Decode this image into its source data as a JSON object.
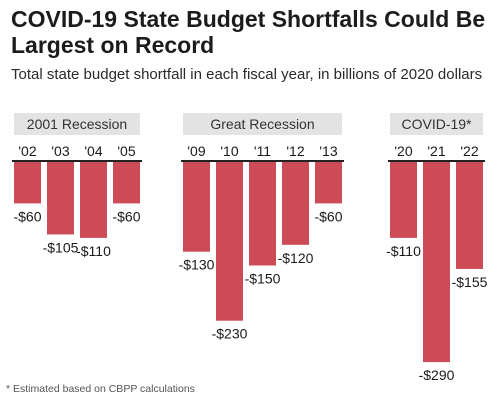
{
  "title": "COVID-19 State Budget Shortfalls Could Be Largest on Record",
  "subtitle": "Total state budget shortfall in each fiscal year, in billions of 2020 dollars",
  "footnote": "* Estimated based on CBPP calculations",
  "colors": {
    "bar": "#cc4b57",
    "group_bg": "#e3e3e3",
    "axis": "#222222"
  },
  "chart_data": {
    "type": "bar",
    "ylabel": "",
    "xlabel": "",
    "ylim": [
      -300,
      0
    ],
    "value_format": "-$N",
    "groups": [
      {
        "name": "2001 Recession",
        "categories": [
          "'02",
          "'03",
          "'04",
          "'05"
        ],
        "values": [
          -60,
          -105,
          -110,
          -60
        ]
      },
      {
        "name": "Great Recession",
        "categories": [
          "'09",
          "'10",
          "'11",
          "'12",
          "'13"
        ],
        "values": [
          -130,
          -230,
          -150,
          -120,
          -60
        ]
      },
      {
        "name": "COVID-19*",
        "categories": [
          "'20",
          "'21",
          "'22"
        ],
        "values": [
          -110,
          -290,
          -155
        ]
      }
    ]
  }
}
